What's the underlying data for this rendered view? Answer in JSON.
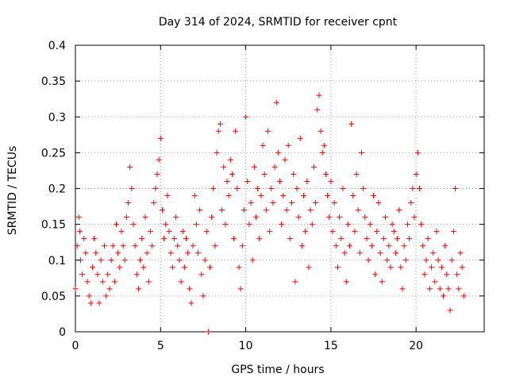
{
  "chart_data": {
    "type": "scatter",
    "title": "Day 314 of 2024, SRMTID for receiver cpnt",
    "xlabel": "GPS time / hours",
    "ylabel": "SRMTID / TECUs",
    "xlim": [
      0,
      24
    ],
    "ylim": [
      0,
      0.4
    ],
    "xticks": [
      0,
      5,
      10,
      15,
      20
    ],
    "xtick_labels": [
      "0",
      "5",
      "10",
      "15",
      "20"
    ],
    "yticks": [
      0,
      0.05,
      0.1,
      0.15,
      0.2,
      0.25,
      0.3,
      0.35,
      0.4
    ],
    "ytick_labels": [
      "0",
      "0.05",
      "0.1",
      "0.15",
      "0.2",
      "0.25",
      "0.3",
      "0.35",
      "0.4"
    ],
    "grid": true,
    "marker": "+",
    "series": [
      {
        "name": "SRMTID",
        "color": "#ff0000",
        "points": [
          [
            0.0,
            0.06
          ],
          [
            0.1,
            0.12
          ],
          [
            0.2,
            0.16
          ],
          [
            0.25,
            0.14
          ],
          [
            0.3,
            0.1
          ],
          [
            0.4,
            0.08
          ],
          [
            0.5,
            0.13
          ],
          [
            0.6,
            0.11
          ],
          [
            0.7,
            0.07
          ],
          [
            0.8,
            0.05
          ],
          [
            0.9,
            0.04
          ],
          [
            1.0,
            0.09
          ],
          [
            1.1,
            0.13
          ],
          [
            1.2,
            0.11
          ],
          [
            1.3,
            0.08
          ],
          [
            1.4,
            0.04
          ],
          [
            1.5,
            0.1
          ],
          [
            1.6,
            0.07
          ],
          [
            1.7,
            0.12
          ],
          [
            1.8,
            0.05
          ],
          [
            1.9,
            0.08
          ],
          [
            2.0,
            0.06
          ],
          [
            2.1,
            0.1
          ],
          [
            2.2,
            0.12
          ],
          [
            2.3,
            0.07
          ],
          [
            2.4,
            0.15
          ],
          [
            2.5,
            0.11
          ],
          [
            2.6,
            0.09
          ],
          [
            2.7,
            0.14
          ],
          [
            2.8,
            0.12
          ],
          [
            2.9,
            0.1
          ],
          [
            3.0,
            0.16
          ],
          [
            3.1,
            0.18
          ],
          [
            3.2,
            0.23
          ],
          [
            3.3,
            0.2
          ],
          [
            3.4,
            0.15
          ],
          [
            3.5,
            0.12
          ],
          [
            3.6,
            0.08
          ],
          [
            3.7,
            0.06
          ],
          [
            3.8,
            0.1
          ],
          [
            3.9,
            0.13
          ],
          [
            4.0,
            0.09
          ],
          [
            4.1,
            0.16
          ],
          [
            4.2,
            0.11
          ],
          [
            4.3,
            0.07
          ],
          [
            4.4,
            0.14
          ],
          [
            4.5,
            0.12
          ],
          [
            4.6,
            0.18
          ],
          [
            4.7,
            0.2
          ],
          [
            4.8,
            0.22
          ],
          [
            4.9,
            0.24
          ],
          [
            5.0,
            0.27
          ],
          [
            5.1,
            0.17
          ],
          [
            5.2,
            0.13
          ],
          [
            5.3,
            0.15
          ],
          [
            5.4,
            0.19
          ],
          [
            5.5,
            0.14
          ],
          [
            5.6,
            0.11
          ],
          [
            5.7,
            0.09
          ],
          [
            5.8,
            0.13
          ],
          [
            5.9,
            0.16
          ],
          [
            6.0,
            0.12
          ],
          [
            6.1,
            0.1
          ],
          [
            6.2,
            0.07
          ],
          [
            6.3,
            0.14
          ],
          [
            6.4,
            0.09
          ],
          [
            6.5,
            0.13
          ],
          [
            6.6,
            0.11
          ],
          [
            6.7,
            0.06
          ],
          [
            6.8,
            0.04
          ],
          [
            6.9,
            0.12
          ],
          [
            7.0,
            0.19
          ],
          [
            7.1,
            0.15
          ],
          [
            7.2,
            0.11
          ],
          [
            7.3,
            0.17
          ],
          [
            7.4,
            0.08
          ],
          [
            7.5,
            0.05
          ],
          [
            7.6,
            0.1
          ],
          [
            7.7,
            0.14
          ],
          [
            7.8,
            0.0
          ],
          [
            7.9,
            0.09
          ],
          [
            8.0,
            0.16
          ],
          [
            8.1,
            0.2
          ],
          [
            8.2,
            0.12
          ],
          [
            8.3,
            0.25
          ],
          [
            8.4,
            0.28
          ],
          [
            8.5,
            0.29
          ],
          [
            8.6,
            0.17
          ],
          [
            8.7,
            0.23
          ],
          [
            8.8,
            0.15
          ],
          [
            8.9,
            0.21
          ],
          [
            9.0,
            0.19
          ],
          [
            9.1,
            0.24
          ],
          [
            9.2,
            0.22
          ],
          [
            9.3,
            0.13
          ],
          [
            9.4,
            0.28
          ],
          [
            9.5,
            0.2
          ],
          [
            9.6,
            0.09
          ],
          [
            9.7,
            0.06
          ],
          [
            9.8,
            0.12
          ],
          [
            9.9,
            0.17
          ],
          [
            10.0,
            0.3
          ],
          [
            10.1,
            0.21
          ],
          [
            10.2,
            0.15
          ],
          [
            10.3,
            0.18
          ],
          [
            10.4,
            0.1
          ],
          [
            10.5,
            0.23
          ],
          [
            10.6,
            0.16
          ],
          [
            10.7,
            0.2
          ],
          [
            10.8,
            0.13
          ],
          [
            10.9,
            0.19
          ],
          [
            11.0,
            0.26
          ],
          [
            11.1,
            0.22
          ],
          [
            11.2,
            0.17
          ],
          [
            11.3,
            0.28
          ],
          [
            11.4,
            0.14
          ],
          [
            11.5,
            0.2
          ],
          [
            11.6,
            0.18
          ],
          [
            11.7,
            0.23
          ],
          [
            11.8,
            0.32
          ],
          [
            11.9,
            0.25
          ],
          [
            12.0,
            0.21
          ],
          [
            12.1,
            0.15
          ],
          [
            12.2,
            0.19
          ],
          [
            12.3,
            0.24
          ],
          [
            12.4,
            0.17
          ],
          [
            12.5,
            0.26
          ],
          [
            12.6,
            0.13
          ],
          [
            12.7,
            0.18
          ],
          [
            12.8,
            0.22
          ],
          [
            12.9,
            0.07
          ],
          [
            13.0,
            0.2
          ],
          [
            13.1,
            0.16
          ],
          [
            13.2,
            0.27
          ],
          [
            13.3,
            0.12
          ],
          [
            13.4,
            0.19
          ],
          [
            13.5,
            0.14
          ],
          [
            13.6,
            0.21
          ],
          [
            13.7,
            0.09
          ],
          [
            13.8,
            0.17
          ],
          [
            13.9,
            0.15
          ],
          [
            14.0,
            0.23
          ],
          [
            14.1,
            0.18
          ],
          [
            14.2,
            0.31
          ],
          [
            14.3,
            0.33
          ],
          [
            14.4,
            0.28
          ],
          [
            14.5,
            0.25
          ],
          [
            14.6,
            0.26
          ],
          [
            14.7,
            0.22
          ],
          [
            14.8,
            0.19
          ],
          [
            14.9,
            0.16
          ],
          [
            15.0,
            0.21
          ],
          [
            15.1,
            0.14
          ],
          [
            15.2,
            0.18
          ],
          [
            15.3,
            0.12
          ],
          [
            15.4,
            0.09
          ],
          [
            15.5,
            0.16
          ],
          [
            15.6,
            0.13
          ],
          [
            15.7,
            0.2
          ],
          [
            15.8,
            0.11
          ],
          [
            15.9,
            0.07
          ],
          [
            16.0,
            0.15
          ],
          [
            16.1,
            0.12
          ],
          [
            16.2,
            0.29
          ],
          [
            16.3,
            0.19
          ],
          [
            16.4,
            0.14
          ],
          [
            16.5,
            0.22
          ],
          [
            16.6,
            0.17
          ],
          [
            16.7,
            0.11
          ],
          [
            16.8,
            0.25
          ],
          [
            16.9,
            0.2
          ],
          [
            17.0,
            0.16
          ],
          [
            17.1,
            0.13
          ],
          [
            17.2,
            0.1
          ],
          [
            17.3,
            0.15
          ],
          [
            17.4,
            0.12
          ],
          [
            17.5,
            0.19
          ],
          [
            17.6,
            0.08
          ],
          [
            17.7,
            0.14
          ],
          [
            17.8,
            0.18
          ],
          [
            17.9,
            0.11
          ],
          [
            18.0,
            0.07
          ],
          [
            18.1,
            0.13
          ],
          [
            18.2,
            0.16
          ],
          [
            18.3,
            0.1
          ],
          [
            18.4,
            0.12
          ],
          [
            18.5,
            0.09
          ],
          [
            18.6,
            0.15
          ],
          [
            18.7,
            0.14
          ],
          [
            18.8,
            0.11
          ],
          [
            18.9,
            0.13
          ],
          [
            19.0,
            0.17
          ],
          [
            19.1,
            0.09
          ],
          [
            19.2,
            0.06
          ],
          [
            19.3,
            0.12
          ],
          [
            19.4,
            0.1
          ],
          [
            19.5,
            0.15
          ],
          [
            19.6,
            0.13
          ],
          [
            19.7,
            0.18
          ],
          [
            19.8,
            0.2
          ],
          [
            19.9,
            0.16
          ],
          [
            20.0,
            0.22
          ],
          [
            20.1,
            0.25
          ],
          [
            20.2,
            0.2
          ],
          [
            20.3,
            0.15
          ],
          [
            20.4,
            0.12
          ],
          [
            20.5,
            0.08
          ],
          [
            20.6,
            0.1
          ],
          [
            20.7,
            0.13
          ],
          [
            20.8,
            0.06
          ],
          [
            20.9,
            0.09
          ],
          [
            21.0,
            0.11
          ],
          [
            21.1,
            0.07
          ],
          [
            21.2,
            0.14
          ],
          [
            21.3,
            0.1
          ],
          [
            21.4,
            0.06
          ],
          [
            21.5,
            0.09
          ],
          [
            21.6,
            0.05
          ],
          [
            21.7,
            0.12
          ],
          [
            21.8,
            0.08
          ],
          [
            21.9,
            0.06
          ],
          [
            22.0,
            0.03
          ],
          [
            22.1,
            0.1
          ],
          [
            22.2,
            0.14
          ],
          [
            22.3,
            0.2
          ],
          [
            22.4,
            0.08
          ],
          [
            22.5,
            0.06
          ],
          [
            22.6,
            0.11
          ],
          [
            22.7,
            0.09
          ],
          [
            22.8,
            0.05
          ]
        ]
      }
    ]
  }
}
